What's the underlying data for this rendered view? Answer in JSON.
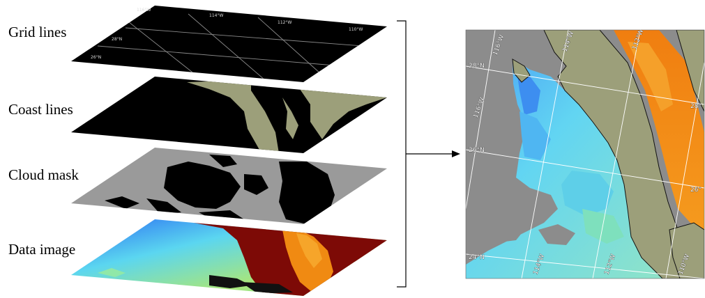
{
  "layers": [
    {
      "label": "Grid lines"
    },
    {
      "label": "Coast lines"
    },
    {
      "label": "Cloud mask"
    },
    {
      "label": "Data image"
    }
  ],
  "colors": {
    "land": "#9c9f7a",
    "cloud": "#9a9a9a",
    "black": "#000000",
    "grid": "#ffffff",
    "data_land": "#7d0a06",
    "sst_cold": "#2a6cf2",
    "sst_cool": "#5bd6f0",
    "sst_mid": "#a8e67a",
    "sst_warm": "#f08a12"
  },
  "composite": {
    "lat_labels": [
      "28°N",
      "26°N",
      "26°",
      "24°N"
    ],
    "lon_labels": [
      "116°W",
      "114°W",
      "112°W",
      "116°W",
      "114°W",
      "112°W",
      "110°W",
      "28°"
    ]
  },
  "grid_layer_labels": [
    "116°W",
    "114°W",
    "112°W",
    "110°W",
    "28°N",
    "26°N"
  ]
}
